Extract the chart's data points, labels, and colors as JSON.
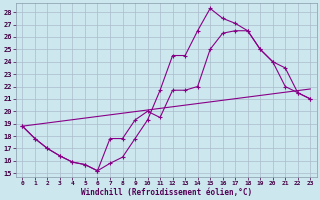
{
  "xlabel": "Windchill (Refroidissement éolien,°C)",
  "bg_color": "#cce8ee",
  "grid_color": "#aabbcc",
  "line_color": "#880088",
  "xlim": [
    -0.5,
    23.5
  ],
  "ylim": [
    14.7,
    28.7
  ],
  "xticks": [
    0,
    1,
    2,
    3,
    4,
    5,
    6,
    7,
    8,
    9,
    10,
    11,
    12,
    13,
    14,
    15,
    16,
    17,
    18,
    19,
    20,
    21,
    22,
    23
  ],
  "yticks": [
    15,
    16,
    17,
    18,
    19,
    20,
    21,
    22,
    23,
    24,
    25,
    26,
    27,
    28
  ],
  "line1_x": [
    0,
    1,
    2,
    3,
    4,
    5,
    6,
    7,
    8,
    9,
    10,
    11,
    12,
    13,
    14,
    15,
    16,
    17,
    18,
    19,
    20,
    21,
    22,
    23
  ],
  "line1_y": [
    18.8,
    17.8,
    17.0,
    16.4,
    15.9,
    15.7,
    15.2,
    15.8,
    16.3,
    17.8,
    19.3,
    21.7,
    24.5,
    24.5,
    26.5,
    28.3,
    27.5,
    27.1,
    26.5,
    25.0,
    24.0,
    23.5,
    21.5,
    21.0
  ],
  "line2_x": [
    0,
    1,
    2,
    3,
    4,
    5,
    6,
    7,
    8,
    9,
    10,
    11,
    12,
    13,
    14,
    15,
    16,
    17,
    18,
    19,
    20,
    21,
    22,
    23
  ],
  "line2_y": [
    18.8,
    17.8,
    17.0,
    16.4,
    15.9,
    15.7,
    15.2,
    17.8,
    17.8,
    19.3,
    20.0,
    19.5,
    21.7,
    21.7,
    22.0,
    25.0,
    26.3,
    26.5,
    26.5,
    25.0,
    24.0,
    22.0,
    21.5,
    21.0
  ],
  "line3_x": [
    0,
    23
  ],
  "line3_y": [
    18.8,
    21.8
  ]
}
